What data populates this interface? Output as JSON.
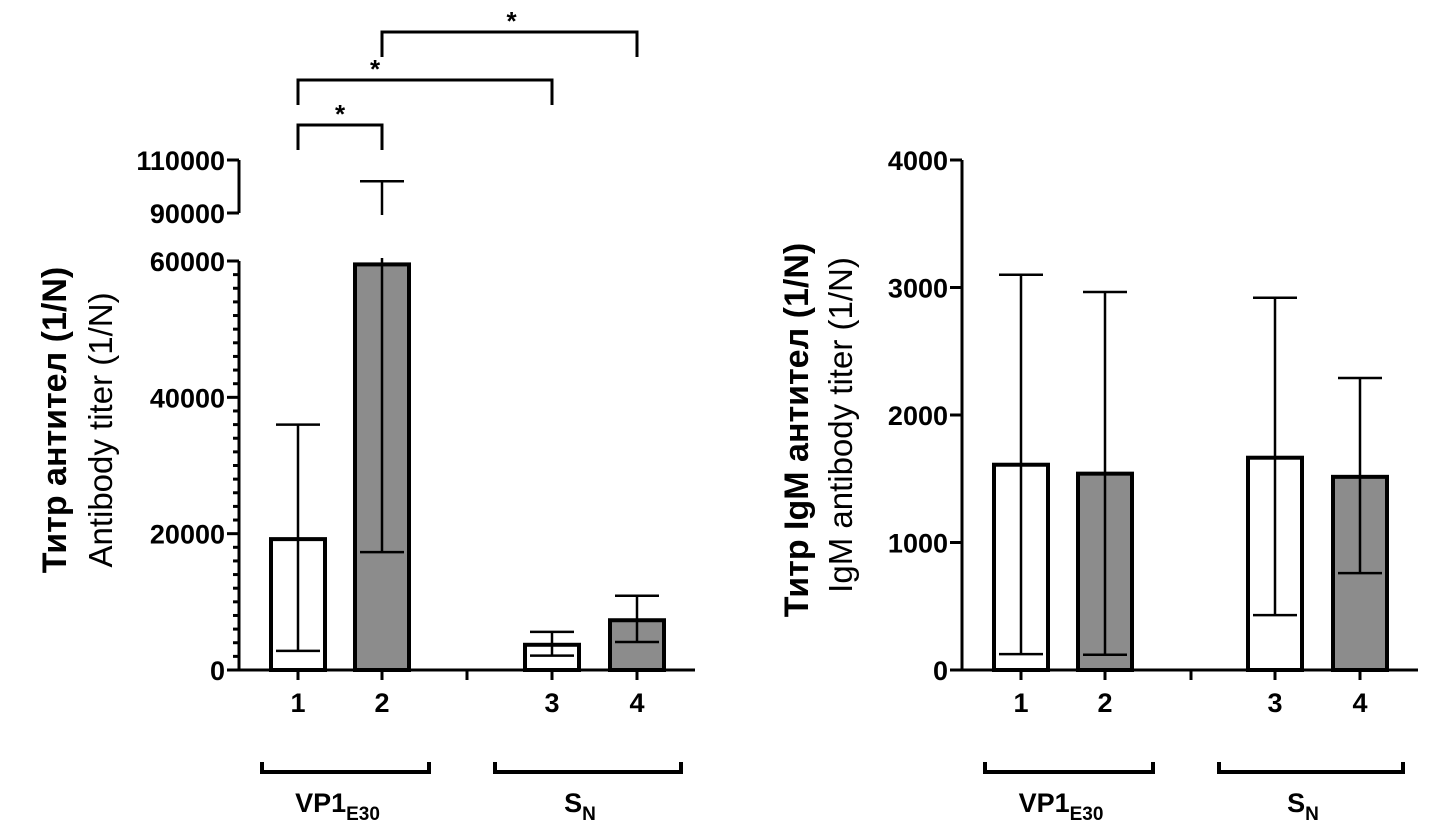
{
  "colors": {
    "open_bar": "#ffffff",
    "filled_bar": "#8c8c8c",
    "stroke": "#000000"
  },
  "chart_data": [
    {
      "type": "bar",
      "title": "",
      "ylabel_line1": "Титр антител (1/N)",
      "ylabel_line2": "Antibody titer (1/N)",
      "xlabel": "",
      "categories": [
        "1",
        "2",
        "3",
        "4"
      ],
      "groups": [
        {
          "label": "VP1",
          "sub": "E30",
          "categories": [
            "1",
            "2"
          ]
        },
        {
          "label": "S",
          "sub": "N",
          "categories": [
            "3",
            "4"
          ]
        }
      ],
      "values": [
        19200,
        59500,
        3700,
        7300
      ],
      "error_high": [
        36000,
        102000,
        5600,
        10900
      ],
      "error_low": [
        2800,
        17300,
        2100,
        4100
      ],
      "fill": [
        "open",
        "filled",
        "open",
        "filled"
      ],
      "y_axis_break": true,
      "ylim_lower": [
        0,
        60000
      ],
      "ylim_upper": [
        90000,
        110000
      ],
      "yticks_lower": [
        "0",
        "20000",
        "40000",
        "60000"
      ],
      "yticks_upper": [
        "90000",
        "110000"
      ],
      "significance": [
        {
          "from": "1",
          "to": "2",
          "label": "*"
        },
        {
          "from": "1",
          "to": "3",
          "label": "*"
        },
        {
          "from": "2",
          "to": "4",
          "label": "*"
        }
      ],
      "grid": false,
      "legend": "none"
    },
    {
      "type": "bar",
      "title": "",
      "ylabel_line1": "Титр IgM антител (1/N)",
      "ylabel_line2": "IgM antibody titer (1/N)",
      "xlabel": "",
      "categories": [
        "1",
        "2",
        "3",
        "4"
      ],
      "groups": [
        {
          "label": "VP1",
          "sub": "E30",
          "categories": [
            "1",
            "2"
          ]
        },
        {
          "label": "S",
          "sub": "N",
          "categories": [
            "3",
            "4"
          ]
        }
      ],
      "values": [
        1610,
        1540,
        1665,
        1515
      ],
      "error_high": [
        3100,
        2965,
        2920,
        2290
      ],
      "error_low": [
        125,
        120,
        430,
        760
      ],
      "fill": [
        "open",
        "filled",
        "open",
        "filled"
      ],
      "ylim": [
        0,
        4000
      ],
      "yticks": [
        "0",
        "1000",
        "2000",
        "3000",
        "4000"
      ],
      "grid": false,
      "legend": "none"
    }
  ]
}
